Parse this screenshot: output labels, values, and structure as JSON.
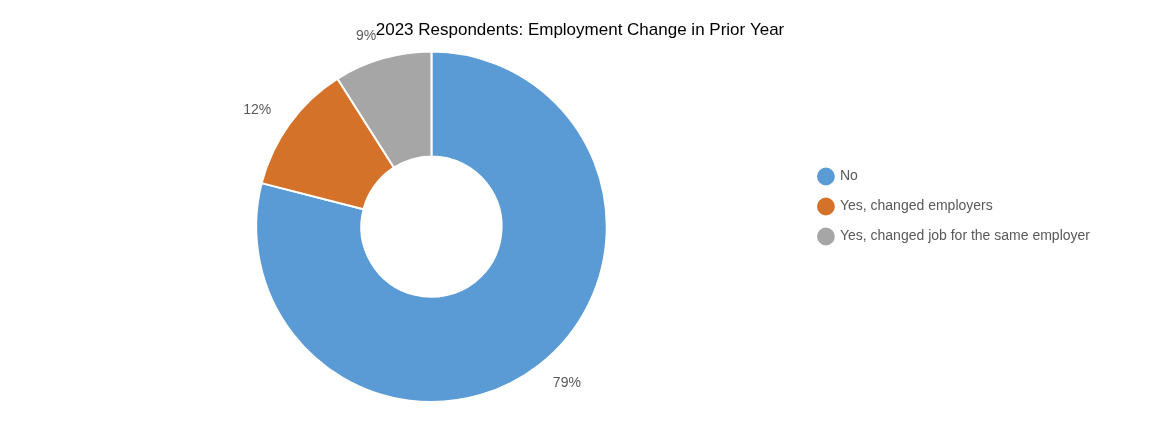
{
  "chart_data": {
    "type": "doughnut",
    "title": "2023 Respondents: Employment Change in Prior Year",
    "categories": [
      "No",
      "Yes, changed employers",
      "Yes, changed job for the same employer"
    ],
    "values": [
      79,
      12,
      9
    ],
    "value_labels": [
      "79%",
      "12%",
      "9%"
    ],
    "colors": [
      "#5B9BD5",
      "#D4722A",
      "#A6A6A6"
    ],
    "data_labels": true,
    "legend": "right"
  }
}
